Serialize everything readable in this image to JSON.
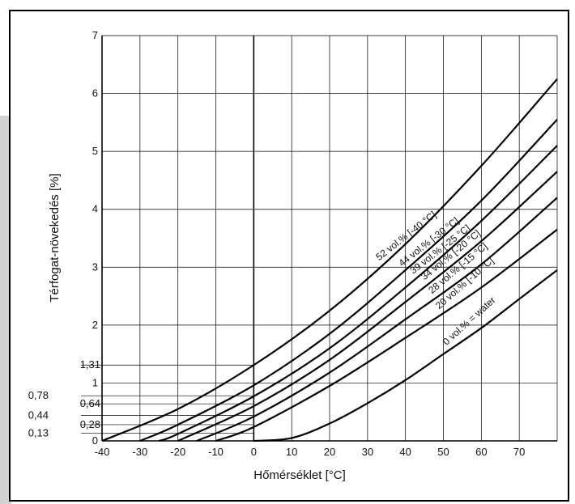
{
  "chart_data": {
    "type": "line",
    "title": "",
    "xlabel": "Hőmérséklet [°C]",
    "ylabel": "Térfogat-növekedés [%]",
    "xlim": [
      -40,
      80
    ],
    "ylim": [
      0,
      7
    ],
    "x_ticks": [
      -40,
      -30,
      -20,
      -10,
      0,
      10,
      20,
      30,
      40,
      50,
      60,
      70
    ],
    "x_tick_labels": [
      "-40",
      "-30",
      "-20",
      "-10",
      "0",
      "10",
      "20",
      "30",
      "40",
      "50",
      "60",
      "70"
    ],
    "y_ticks": [
      0,
      1,
      2,
      3,
      4,
      5,
      6,
      7
    ],
    "y_tick_labels": [
      "0",
      "1",
      "2",
      "3",
      "4",
      "5",
      "6",
      "7"
    ],
    "extra_y_refs": [
      0.13,
      0.28,
      0.44,
      0.64,
      0.78,
      1.31
    ],
    "extra_y_ref_labels": [
      "0,13",
      "0,28",
      "0,44",
      "0,64",
      "0,78",
      "1,31"
    ],
    "grid": true,
    "series": [
      {
        "name": "52 vol.% [-40 °C]",
        "x": [
          -40,
          -20,
          0,
          20,
          40,
          60,
          80
        ],
        "y": [
          0,
          0.55,
          1.31,
          2.25,
          3.4,
          4.75,
          6.25
        ]
      },
      {
        "name": "44 vol.% [-30 °C]",
        "x": [
          -30,
          -20,
          0,
          20,
          40,
          60,
          80
        ],
        "y": [
          0,
          0.28,
          0.96,
          1.85,
          2.95,
          4.15,
          5.55
        ]
      },
      {
        "name": "39 vol.% [-25 °C]",
        "x": [
          -25,
          -20,
          0,
          20,
          40,
          60,
          80
        ],
        "y": [
          0,
          0.12,
          0.77,
          1.6,
          2.65,
          3.8,
          5.1
        ]
      },
      {
        "name": "34 vol.% [-20 °C]",
        "x": [
          -20,
          0,
          20,
          40,
          60,
          80
        ],
        "y": [
          0,
          0.6,
          1.4,
          2.4,
          3.45,
          4.65
        ]
      },
      {
        "name": "28 vol.% [-15 °C]",
        "x": [
          -15,
          0,
          20,
          40,
          60,
          80
        ],
        "y": [
          0,
          0.42,
          1.18,
          2.1,
          3.05,
          4.2
        ]
      },
      {
        "name": "20 vol.% [-10 °C]",
        "x": [
          -10,
          0,
          20,
          40,
          60,
          80
        ],
        "y": [
          0,
          0.24,
          0.95,
          1.78,
          2.65,
          3.65
        ]
      },
      {
        "name": "0 vol.% = water",
        "x": [
          0,
          10,
          20,
          30,
          40,
          50,
          60,
          70,
          80
        ],
        "y": [
          0,
          0.05,
          0.3,
          0.65,
          1.05,
          1.5,
          1.95,
          2.45,
          2.95
        ]
      }
    ],
    "colors": {
      "line": "#000000",
      "grid": "#000000",
      "background": "#ffffff",
      "sidebar": "#d3d3d3"
    }
  }
}
